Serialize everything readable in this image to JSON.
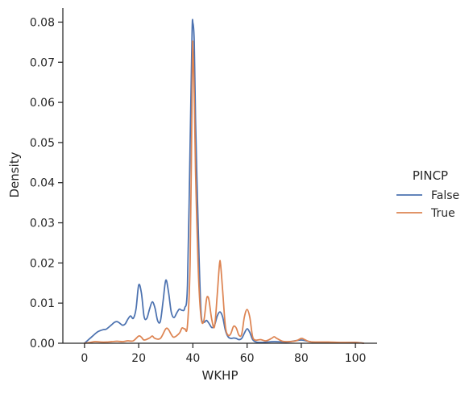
{
  "chart_data": {
    "type": "line",
    "title": "",
    "xlabel": "WKHP",
    "ylabel": "Density",
    "xlim": [
      -8,
      108
    ],
    "ylim": [
      0,
      0.0835
    ],
    "x_ticks": [
      0,
      20,
      40,
      60,
      80,
      100
    ],
    "x_tick_labels": [
      "0",
      "20",
      "40",
      "60",
      "80",
      "100"
    ],
    "y_ticks": [
      0,
      0.01,
      0.02,
      0.03,
      0.04,
      0.05,
      0.06,
      0.07,
      0.08
    ],
    "y_tick_labels": [
      "0.00",
      "0.01",
      "0.02",
      "0.03",
      "0.04",
      "0.05",
      "0.06",
      "0.07",
      "0.08"
    ],
    "grid": false,
    "legend": {
      "title": "PINCP",
      "placement": "right"
    },
    "series": [
      {
        "name": "False",
        "color": "#4c72b0",
        "points": [
          [
            0,
            0.0
          ],
          [
            1,
            0.0006
          ],
          [
            3,
            0.0018
          ],
          [
            5,
            0.0029
          ],
          [
            7,
            0.0034
          ],
          [
            8,
            0.0035
          ],
          [
            10,
            0.0046
          ],
          [
            11,
            0.0052
          ],
          [
            12,
            0.0054
          ],
          [
            13,
            0.005
          ],
          [
            14,
            0.0045
          ],
          [
            15,
            0.0048
          ],
          [
            16,
            0.006
          ],
          [
            17,
            0.0068
          ],
          [
            18,
            0.0062
          ],
          [
            19,
            0.0085
          ],
          [
            20,
            0.0145
          ],
          [
            21,
            0.0125
          ],
          [
            22,
            0.0066
          ],
          [
            23,
            0.0062
          ],
          [
            24,
            0.0085
          ],
          [
            25,
            0.0103
          ],
          [
            26,
            0.0088
          ],
          [
            27,
            0.0056
          ],
          [
            28,
            0.0055
          ],
          [
            29,
            0.0105
          ],
          [
            30,
            0.0157
          ],
          [
            31,
            0.0128
          ],
          [
            32,
            0.0078
          ],
          [
            33,
            0.0064
          ],
          [
            34,
            0.0075
          ],
          [
            35,
            0.0085
          ],
          [
            36,
            0.0082
          ],
          [
            37,
            0.0088
          ],
          [
            38,
            0.0145
          ],
          [
            39,
            0.0505
          ],
          [
            39.7,
            0.0775
          ],
          [
            40,
            0.0798
          ],
          [
            40.5,
            0.075
          ],
          [
            41,
            0.055
          ],
          [
            42,
            0.028
          ],
          [
            43,
            0.0078
          ],
          [
            44,
            0.0053
          ],
          [
            45,
            0.0057
          ],
          [
            46,
            0.0049
          ],
          [
            47,
            0.0039
          ],
          [
            48,
            0.0045
          ],
          [
            49,
            0.0068
          ],
          [
            50,
            0.0078
          ],
          [
            51,
            0.0065
          ],
          [
            52,
            0.0032
          ],
          [
            53,
            0.0016
          ],
          [
            54,
            0.0012
          ],
          [
            55,
            0.0013
          ],
          [
            56,
            0.0012
          ],
          [
            57,
            0.0009
          ],
          [
            58,
            0.0012
          ],
          [
            59,
            0.0025
          ],
          [
            60,
            0.0036
          ],
          [
            61,
            0.0027
          ],
          [
            62,
            0.001
          ],
          [
            63,
            0.0004
          ],
          [
            65,
            0.0002
          ],
          [
            70,
            0.0004
          ],
          [
            75,
            0.0003
          ],
          [
            80,
            0.0008
          ],
          [
            85,
            0.0002
          ],
          [
            95,
            0.0001
          ],
          [
            100,
            0.0002
          ],
          [
            103,
            0.0
          ]
        ]
      },
      {
        "name": "True",
        "color": "#dd8452",
        "points": [
          [
            0,
            0.0
          ],
          [
            2,
            0.0002
          ],
          [
            4,
            0.0004
          ],
          [
            6,
            0.0003
          ],
          [
            8,
            0.0003
          ],
          [
            10,
            0.0004
          ],
          [
            12,
            0.0005
          ],
          [
            14,
            0.0004
          ],
          [
            16,
            0.0006
          ],
          [
            18,
            0.0006
          ],
          [
            20,
            0.0018
          ],
          [
            21,
            0.0015
          ],
          [
            22,
            0.0008
          ],
          [
            24,
            0.0013
          ],
          [
            25,
            0.0018
          ],
          [
            26,
            0.0012
          ],
          [
            28,
            0.0012
          ],
          [
            30,
            0.0036
          ],
          [
            31,
            0.0034
          ],
          [
            32,
            0.0022
          ],
          [
            33,
            0.0015
          ],
          [
            35,
            0.0025
          ],
          [
            36,
            0.0038
          ],
          [
            37,
            0.0036
          ],
          [
            38,
            0.0045
          ],
          [
            39,
            0.021
          ],
          [
            39.8,
            0.0695
          ],
          [
            40,
            0.0735
          ],
          [
            40.5,
            0.062
          ],
          [
            41,
            0.042
          ],
          [
            42,
            0.018
          ],
          [
            43,
            0.0065
          ],
          [
            44,
            0.0055
          ],
          [
            45,
            0.0108
          ],
          [
            45.5,
            0.0116
          ],
          [
            46,
            0.0105
          ],
          [
            47,
            0.0058
          ],
          [
            48,
            0.0042
          ],
          [
            49,
            0.0122
          ],
          [
            49.8,
            0.0196
          ],
          [
            50.2,
            0.0198
          ],
          [
            51,
            0.013
          ],
          [
            52,
            0.0042
          ],
          [
            53,
            0.002
          ],
          [
            54,
            0.0024
          ],
          [
            55,
            0.0042
          ],
          [
            56,
            0.0038
          ],
          [
            57,
            0.002
          ],
          [
            58,
            0.0022
          ],
          [
            59,
            0.0065
          ],
          [
            60,
            0.0084
          ],
          [
            61,
            0.0065
          ],
          [
            62,
            0.0018
          ],
          [
            63,
            0.0008
          ],
          [
            65,
            0.0009
          ],
          [
            67,
            0.0006
          ],
          [
            69,
            0.0012
          ],
          [
            70,
            0.0016
          ],
          [
            71,
            0.0012
          ],
          [
            73,
            0.0005
          ],
          [
            75,
            0.0004
          ],
          [
            78,
            0.0006
          ],
          [
            80,
            0.0012
          ],
          [
            81,
            0.001
          ],
          [
            83,
            0.0004
          ],
          [
            86,
            0.0003
          ],
          [
            90,
            0.0003
          ],
          [
            95,
            0.0002
          ],
          [
            100,
            0.0002
          ],
          [
            103,
            0.0
          ]
        ]
      }
    ]
  }
}
